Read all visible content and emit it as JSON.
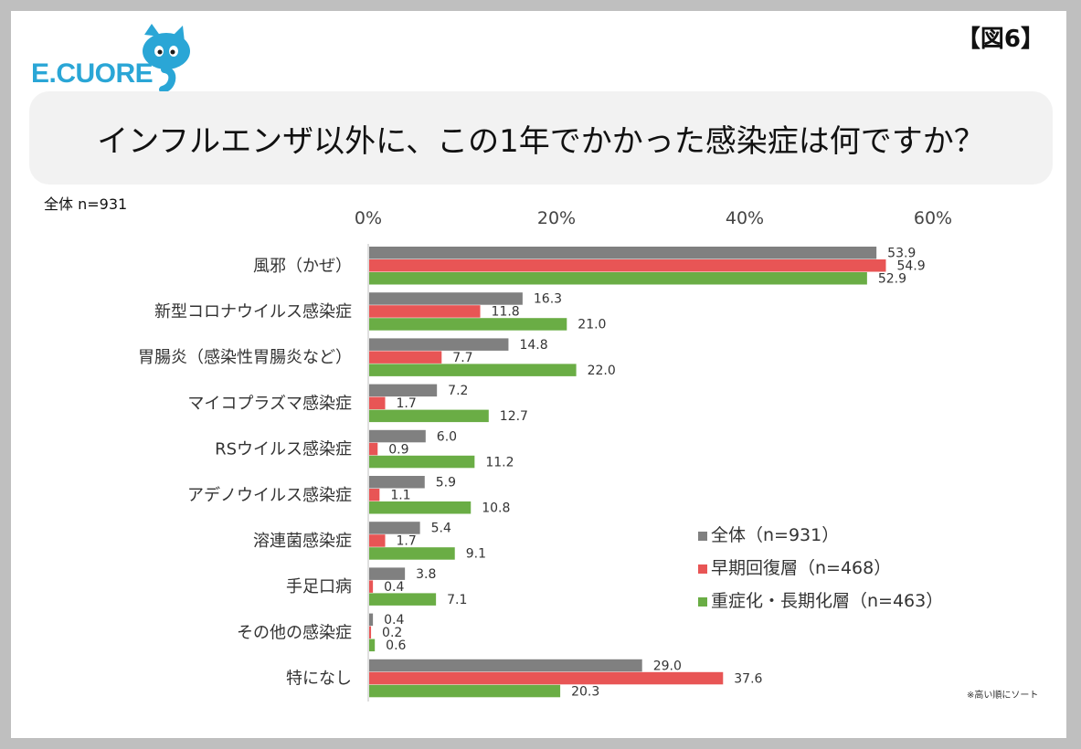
{
  "header": {
    "logo_text": "E.CUORE",
    "figure_label": "【図6】",
    "title": "インフルエンザ以外に、この1年でかかった感染症は何ですか？",
    "sample_note": "全体 n=931",
    "footnote": "※高い順にソート"
  },
  "colors": {
    "series": [
      "#808080",
      "#e85555",
      "#6aad45"
    ]
  },
  "chart_data": {
    "type": "bar",
    "orientation": "horizontal",
    "categories": [
      "風邪（かぜ）",
      "新型コロナウイルス感染症",
      "胃腸炎（感染性胃腸炎など）",
      "マイコプラズマ感染症",
      "RSウイルス感染症",
      "アデノウイルス感染症",
      "溶連菌感染症",
      "手足口病",
      "その他の感染症",
      "特になし"
    ],
    "series": [
      {
        "name": "全体（n=931）",
        "values": [
          53.9,
          16.3,
          14.8,
          7.2,
          6.0,
          5.9,
          5.4,
          3.8,
          0.4,
          29.0
        ]
      },
      {
        "name": "早期回復層（n=468）",
        "values": [
          54.9,
          11.8,
          7.7,
          1.7,
          0.9,
          1.1,
          1.7,
          0.4,
          0.2,
          37.6
        ]
      },
      {
        "name": "重症化・長期化層（n=463）",
        "values": [
          52.9,
          21.0,
          22.0,
          12.7,
          11.2,
          10.8,
          9.1,
          7.1,
          0.6,
          20.3
        ]
      }
    ],
    "x_ticks": [
      "0%",
      "20%",
      "40%",
      "60%"
    ],
    "xlim": [
      0,
      60
    ],
    "axis_position": "top",
    "grid": false,
    "legend_position": "lower-right"
  }
}
